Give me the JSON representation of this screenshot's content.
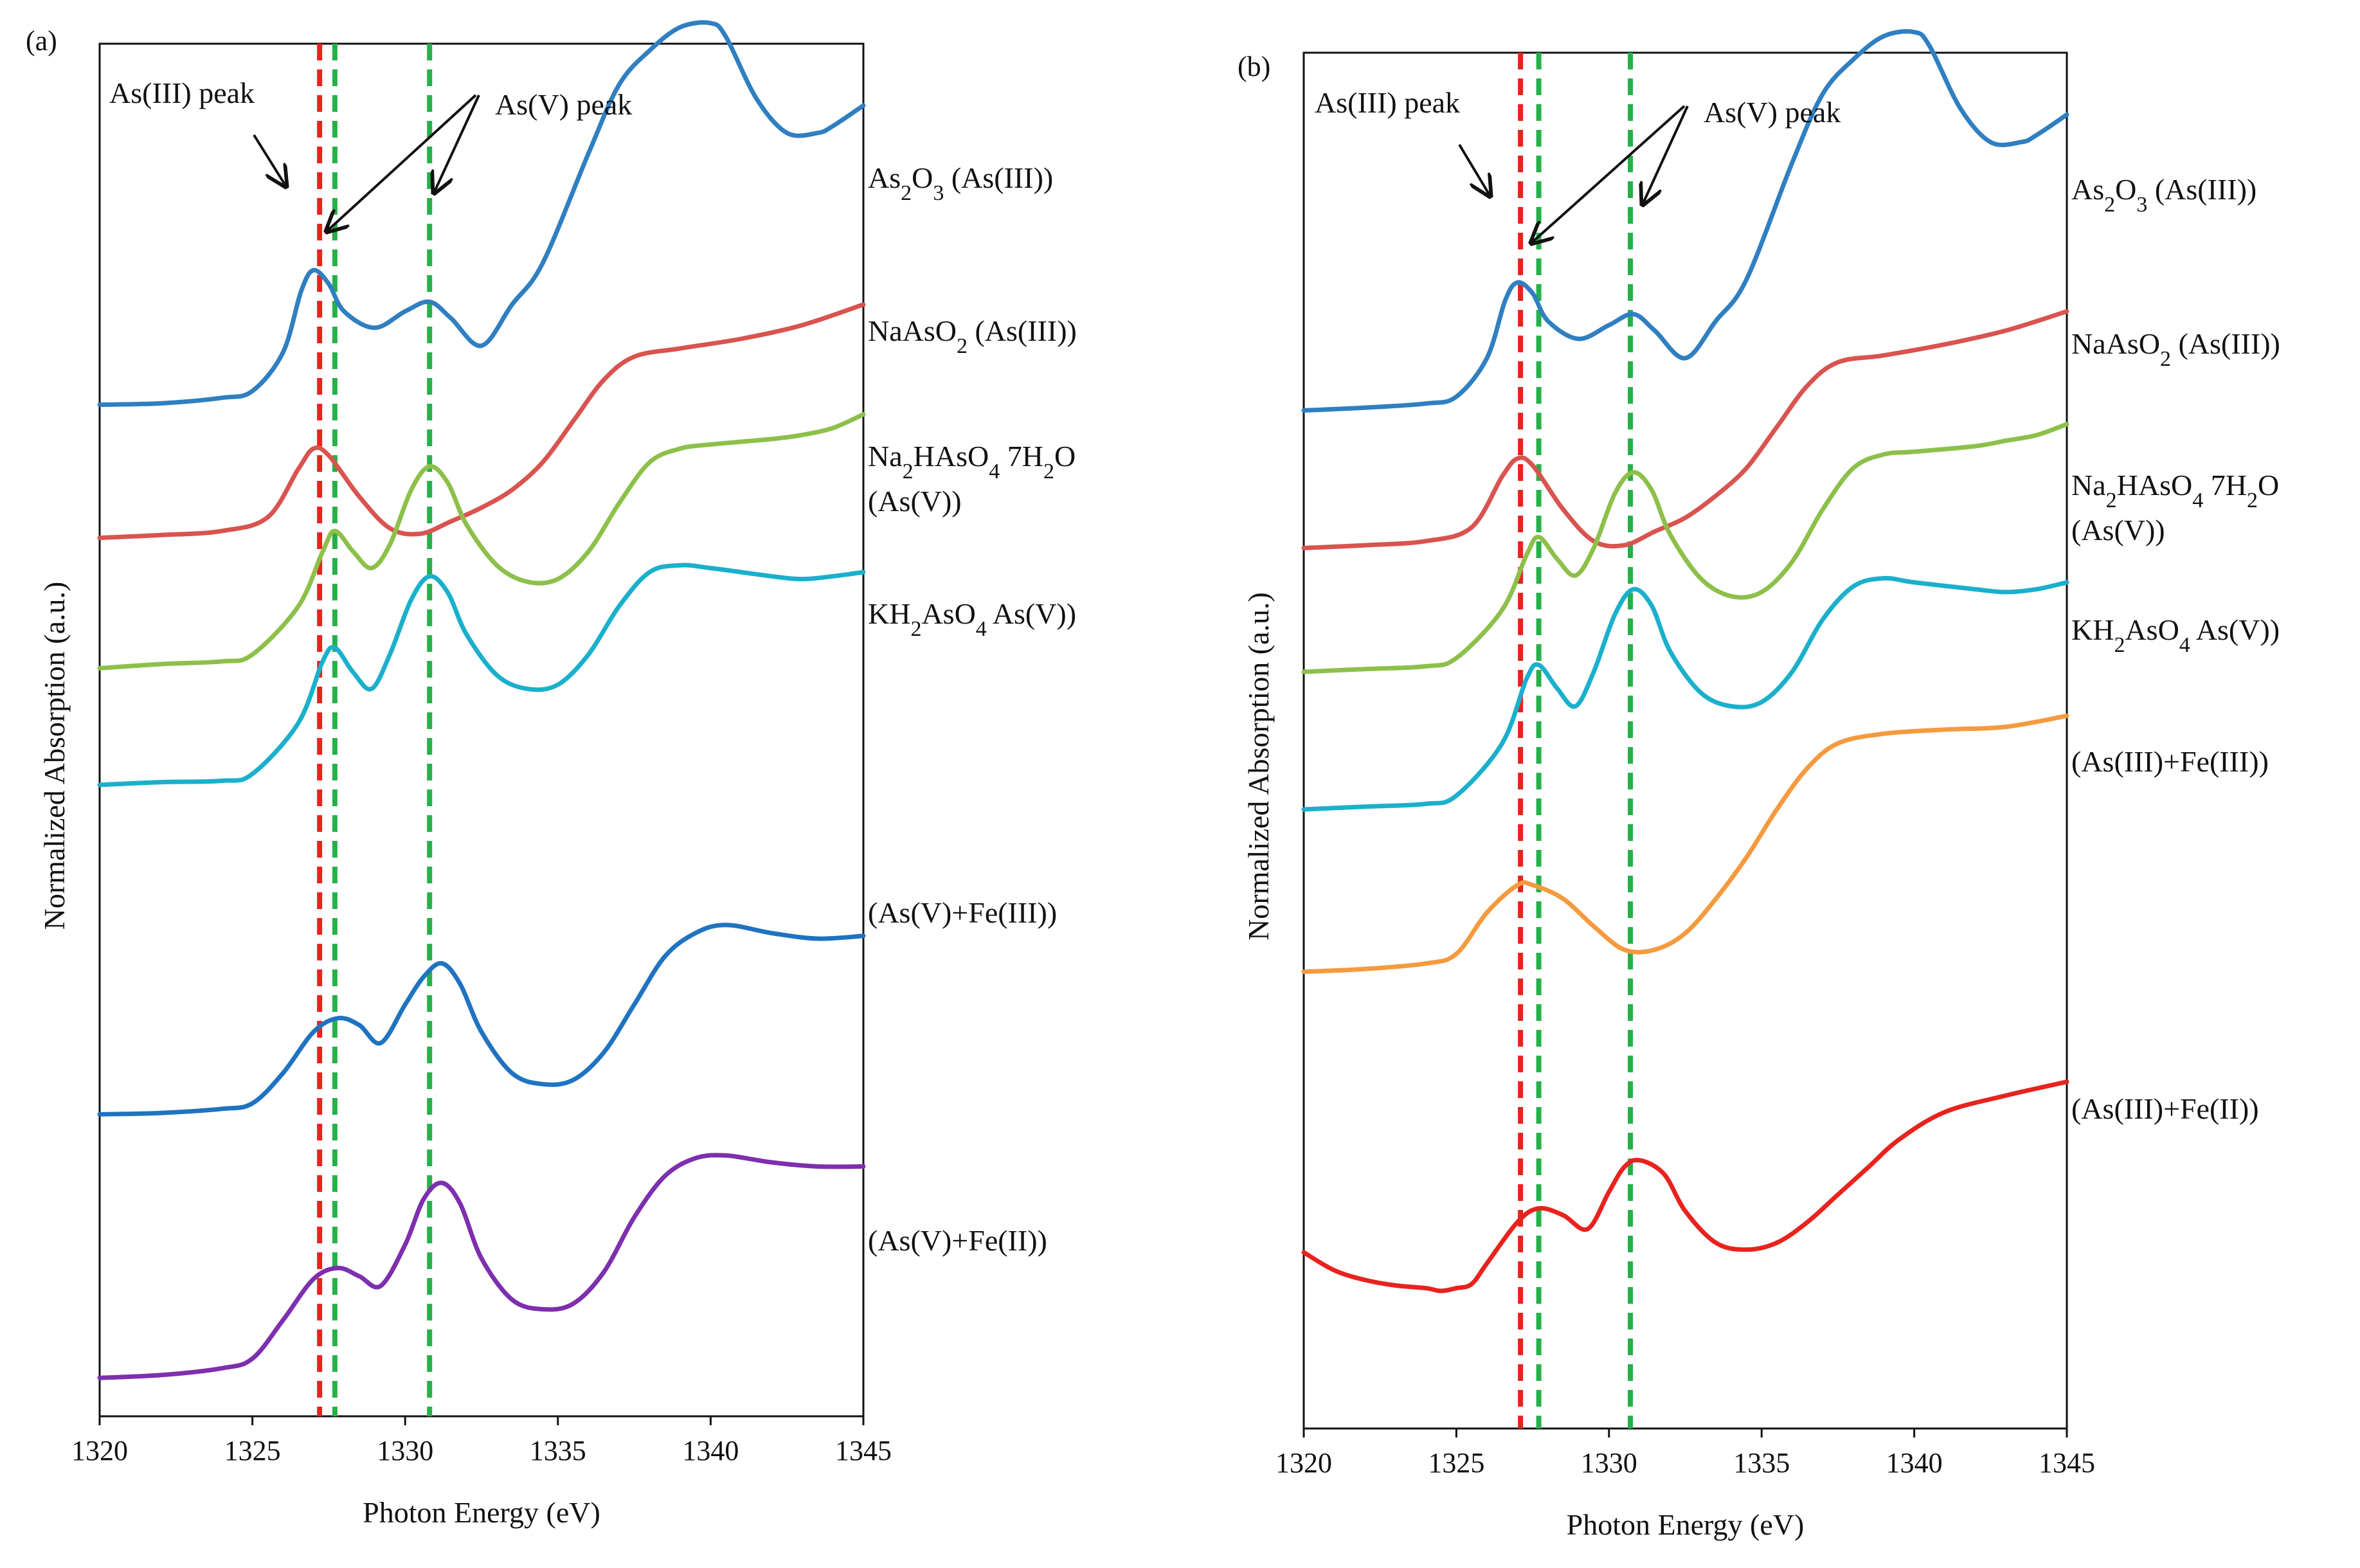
{
  "chart_data": [
    {
      "panel_label": "(a)",
      "type": "line",
      "xlabel": "Photon Energy (eV)",
      "ylabel": "Normalized Absorption (a.u.)",
      "xlim": [
        1320,
        1345
      ],
      "xticks": [
        "1320",
        "1325",
        "1330",
        "1335",
        "1340",
        "1345"
      ],
      "ylim": [
        0,
        10
      ],
      "reference_lines": [
        {
          "x": 1327.2,
          "color": "#e8231e",
          "meaning": "As(III) peak"
        },
        {
          "x": 1327.7,
          "color": "#27b04a",
          "meaning": "As(V) peak"
        },
        {
          "x": 1330.8,
          "color": "#27b04a",
          "meaning": "As(V) peak"
        }
      ],
      "annotations": {
        "as3": "As(III) peak",
        "as5": "As(V) peak"
      },
      "series": [
        {
          "name": "As₂O₃ (As(III))",
          "color": "#2f7fc1",
          "x": [
            1320,
            1322,
            1324,
            1325,
            1326,
            1326.6,
            1327,
            1327.5,
            1328,
            1329,
            1330,
            1330.8,
            1331.5,
            1332.5,
            1333.5,
            1334.5,
            1336,
            1337,
            1338,
            1339,
            1340,
            1340.5,
            1341.5,
            1342.5,
            1343.5,
            1344,
            1345
          ],
          "y": [
            7.37,
            7.38,
            7.42,
            7.47,
            7.75,
            8.2,
            8.35,
            8.25,
            8.05,
            7.93,
            8.05,
            8.12,
            8.0,
            7.8,
            8.1,
            8.4,
            9.2,
            9.7,
            9.95,
            10.12,
            10.15,
            10.05,
            9.6,
            9.35,
            9.35,
            9.4,
            9.55
          ]
        },
        {
          "name": "NaAsO₂ (As(III))",
          "color": "#d9534f",
          "x": [
            1320,
            1322,
            1324,
            1325.5,
            1326.5,
            1327,
            1327.5,
            1328.5,
            1329.5,
            1330.5,
            1331.5,
            1332.5,
            1333.5,
            1334.5,
            1335.5,
            1336.5,
            1337.5,
            1339,
            1341,
            1343,
            1345
          ],
          "y": [
            6.4,
            6.42,
            6.45,
            6.55,
            6.9,
            7.05,
            7.0,
            6.7,
            6.47,
            6.43,
            6.52,
            6.62,
            6.75,
            6.95,
            7.25,
            7.55,
            7.72,
            7.78,
            7.85,
            7.95,
            8.1
          ]
        },
        {
          "name": "Na₂HAsO₄ 7H₂O (As(V))",
          "color": "#8dc04a",
          "x": [
            1320,
            1322,
            1324,
            1325,
            1326.5,
            1327.3,
            1327.7,
            1328.3,
            1328.9,
            1329.5,
            1330.2,
            1330.8,
            1331.4,
            1332,
            1333,
            1334,
            1335,
            1336,
            1337,
            1338,
            1339,
            1340,
            1342,
            1343,
            1344,
            1345
          ],
          "y": [
            5.45,
            5.48,
            5.5,
            5.55,
            5.9,
            6.3,
            6.45,
            6.3,
            6.18,
            6.35,
            6.75,
            6.92,
            6.8,
            6.5,
            6.2,
            6.08,
            6.1,
            6.3,
            6.65,
            6.95,
            7.05,
            7.08,
            7.12,
            7.15,
            7.2,
            7.3
          ]
        },
        {
          "name": "KH₂AsO₄ As(V))",
          "color": "#1ab0cc",
          "x": [
            1320,
            1322,
            1324,
            1325,
            1326.5,
            1327.3,
            1327.7,
            1328.3,
            1328.9,
            1329.5,
            1330.2,
            1330.8,
            1331.4,
            1332,
            1333,
            1334,
            1335,
            1336,
            1337,
            1338,
            1339,
            1340,
            1342,
            1343,
            1344,
            1345
          ],
          "y": [
            4.6,
            4.62,
            4.63,
            4.68,
            5.05,
            5.5,
            5.6,
            5.42,
            5.3,
            5.55,
            5.95,
            6.12,
            6.0,
            5.7,
            5.4,
            5.3,
            5.33,
            5.55,
            5.9,
            6.15,
            6.2,
            6.18,
            6.12,
            6.1,
            6.12,
            6.15
          ]
        },
        {
          "name": "(As(V)+Fe(III))",
          "color": "#1f73c0",
          "x": [
            1320,
            1322,
            1324,
            1325,
            1326,
            1327,
            1327.8,
            1328.5,
            1329.2,
            1330,
            1330.6,
            1331.2,
            1331.8,
            1332.5,
            1333.5,
            1334.5,
            1335.5,
            1336.5,
            1337.5,
            1338.5,
            1339.5,
            1340.5,
            1342,
            1343.5,
            1345
          ],
          "y": [
            2.2,
            2.21,
            2.24,
            2.28,
            2.5,
            2.8,
            2.9,
            2.85,
            2.72,
            3.0,
            3.2,
            3.3,
            3.15,
            2.8,
            2.5,
            2.42,
            2.45,
            2.65,
            3.0,
            3.35,
            3.52,
            3.58,
            3.52,
            3.48,
            3.5
          ]
        },
        {
          "name": "(As(V)+Fe(II))",
          "color": "#7d2fae",
          "x": [
            1320,
            1322,
            1324,
            1325,
            1326,
            1327,
            1327.8,
            1328.5,
            1329.2,
            1330,
            1330.6,
            1331.2,
            1331.8,
            1332.5,
            1333.5,
            1334.5,
            1335.5,
            1336.5,
            1337.5,
            1338.5,
            1339.5,
            1340.5,
            1342,
            1343.5,
            1345
          ],
          "y": [
            0.28,
            0.3,
            0.35,
            0.42,
            0.7,
            1.0,
            1.08,
            1.02,
            0.95,
            1.25,
            1.58,
            1.7,
            1.55,
            1.15,
            0.85,
            0.78,
            0.82,
            1.05,
            1.45,
            1.75,
            1.88,
            1.9,
            1.85,
            1.82,
            1.82
          ]
        }
      ]
    },
    {
      "panel_label": "(b)",
      "type": "line",
      "xlabel": "Photon Energy (eV)",
      "ylabel": "Normalized Absorption (a.u.)",
      "xlim": [
        1320,
        1345
      ],
      "xticks": [
        "1320",
        "1325",
        "1330",
        "1335",
        "1340",
        "1345"
      ],
      "ylim": [
        0,
        10
      ],
      "reference_lines": [
        {
          "x": 1327.1,
          "color": "#e8231e",
          "meaning": "As(III) peak"
        },
        {
          "x": 1327.7,
          "color": "#27b04a",
          "meaning": "As(V) peak"
        },
        {
          "x": 1330.7,
          "color": "#27b04a",
          "meaning": "As(V) peak"
        }
      ],
      "annotations": {
        "as3": "As(III) peak",
        "as5": "As(V) peak"
      },
      "series": [
        {
          "name": "As₂O₃ (As(III))",
          "color": "#2f7fc1",
          "x": [
            1320,
            1322,
            1324,
            1325,
            1326,
            1326.6,
            1327,
            1327.5,
            1328,
            1329,
            1330,
            1330.8,
            1331.5,
            1332.5,
            1333.5,
            1334.5,
            1336,
            1337,
            1338,
            1339,
            1340,
            1340.5,
            1341.5,
            1342.5,
            1343.5,
            1344,
            1345
          ],
          "y": [
            7.4,
            7.42,
            7.45,
            7.5,
            7.78,
            8.2,
            8.33,
            8.25,
            8.05,
            7.92,
            8.02,
            8.1,
            7.98,
            7.78,
            8.05,
            8.35,
            9.2,
            9.7,
            9.95,
            10.12,
            10.15,
            10.05,
            9.6,
            9.35,
            9.35,
            9.4,
            9.55
          ]
        },
        {
          "name": "NaAsO₂ (As(III))",
          "color": "#d9534f",
          "x": [
            1320,
            1322,
            1324,
            1325.5,
            1326.5,
            1327,
            1327.5,
            1328.5,
            1329.5,
            1330.5,
            1331.5,
            1332.5,
            1333.5,
            1334.5,
            1335.5,
            1336.5,
            1337.5,
            1339,
            1341,
            1343,
            1345
          ],
          "y": [
            6.4,
            6.42,
            6.45,
            6.55,
            6.92,
            7.05,
            7.0,
            6.68,
            6.45,
            6.42,
            6.52,
            6.62,
            6.78,
            6.98,
            7.28,
            7.58,
            7.75,
            7.8,
            7.88,
            7.98,
            8.12
          ]
        },
        {
          "name": "Na₂HAsO₄ 7H₂O (As(V))",
          "color": "#8dc04a",
          "x": [
            1320,
            1322,
            1324,
            1325,
            1326.5,
            1327.3,
            1327.7,
            1328.3,
            1328.9,
            1329.5,
            1330.2,
            1330.8,
            1331.4,
            1332,
            1333,
            1334,
            1335,
            1336,
            1337,
            1338,
            1339,
            1340,
            1342,
            1343,
            1344,
            1345
          ],
          "y": [
            5.5,
            5.52,
            5.54,
            5.6,
            5.95,
            6.35,
            6.48,
            6.32,
            6.2,
            6.4,
            6.8,
            6.95,
            6.82,
            6.5,
            6.18,
            6.05,
            6.08,
            6.3,
            6.68,
            6.98,
            7.08,
            7.1,
            7.14,
            7.18,
            7.22,
            7.3
          ]
        },
        {
          "name": "KH₂AsO₄ As(V))",
          "color": "#1ab0cc",
          "x": [
            1320,
            1322,
            1324,
            1325,
            1326.5,
            1327.3,
            1327.7,
            1328.3,
            1328.9,
            1329.5,
            1330.2,
            1330.8,
            1331.4,
            1332,
            1333,
            1334,
            1335,
            1336,
            1337,
            1338,
            1339,
            1340,
            1342,
            1343,
            1344,
            1345
          ],
          "y": [
            4.5,
            4.52,
            4.54,
            4.6,
            4.98,
            5.45,
            5.55,
            5.38,
            5.25,
            5.5,
            5.92,
            6.1,
            5.98,
            5.65,
            5.35,
            5.25,
            5.28,
            5.5,
            5.88,
            6.12,
            6.18,
            6.15,
            6.1,
            6.08,
            6.1,
            6.15
          ]
        },
        {
          "name": "(As(III)+Fe(III))",
          "color": "#f59a3e",
          "x": [
            1320,
            1322,
            1324,
            1325,
            1326,
            1327,
            1327.5,
            1328.5,
            1329.5,
            1330.5,
            1331.5,
            1332.5,
            1333.5,
            1334.5,
            1335.5,
            1336.5,
            1337.5,
            1339,
            1341,
            1343,
            1345
          ],
          "y": [
            3.32,
            3.34,
            3.38,
            3.45,
            3.75,
            3.95,
            3.95,
            3.85,
            3.65,
            3.48,
            3.48,
            3.6,
            3.85,
            4.15,
            4.5,
            4.8,
            4.98,
            5.05,
            5.08,
            5.1,
            5.18
          ]
        },
        {
          "name": "(As(III)+Fe(II))",
          "color": "#e8231e",
          "x": [
            1320,
            1321,
            1322,
            1323,
            1324,
            1324.5,
            1325,
            1325.5,
            1326,
            1327,
            1327.7,
            1328.5,
            1329.3,
            1330,
            1330.5,
            1331,
            1331.8,
            1332.5,
            1333.5,
            1334.5,
            1335.5,
            1336.5,
            1337.5,
            1338.5,
            1339.5,
            1341,
            1343,
            1345
          ],
          "y": [
            1.28,
            1.15,
            1.08,
            1.04,
            1.02,
            1.0,
            1.02,
            1.05,
            1.2,
            1.5,
            1.6,
            1.55,
            1.45,
            1.72,
            1.9,
            1.95,
            1.85,
            1.58,
            1.35,
            1.3,
            1.35,
            1.5,
            1.7,
            1.9,
            2.1,
            2.3,
            2.42,
            2.52
          ]
        }
      ]
    }
  ]
}
